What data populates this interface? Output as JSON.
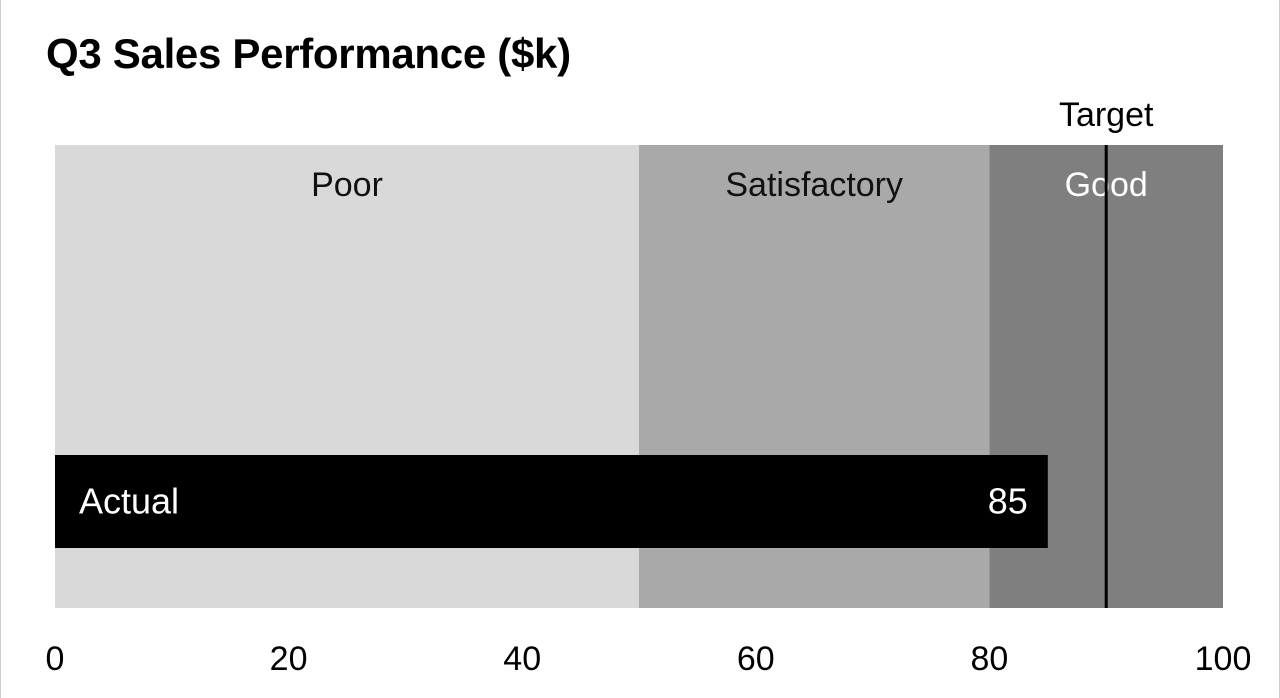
{
  "chart_data": {
    "type": "bar",
    "subtype": "bullet",
    "title": "Q3 Sales Performance ($k)",
    "xlim": [
      0,
      100
    ],
    "ticks": [
      0,
      20,
      40,
      60,
      80,
      100
    ],
    "tick_labels": [
      "0",
      "20",
      "40",
      "60",
      "80",
      "100"
    ],
    "ranges": [
      {
        "label": "Poor",
        "from": 0,
        "to": 50,
        "color": "#d9d9d9",
        "label_color": "#111111"
      },
      {
        "label": "Satisfactory",
        "from": 50,
        "to": 80,
        "color": "#a9a9a9",
        "label_color": "#111111"
      },
      {
        "label": "Good",
        "from": 80,
        "to": 100,
        "color": "#7f7f7f",
        "label_color": "#ffffff"
      }
    ],
    "actual": {
      "label": "Actual",
      "value": 85,
      "value_label": "85",
      "color": "#000000"
    },
    "target": {
      "label": "Target",
      "value": 90,
      "color": "#000000"
    },
    "grid": false,
    "legend": "none"
  }
}
